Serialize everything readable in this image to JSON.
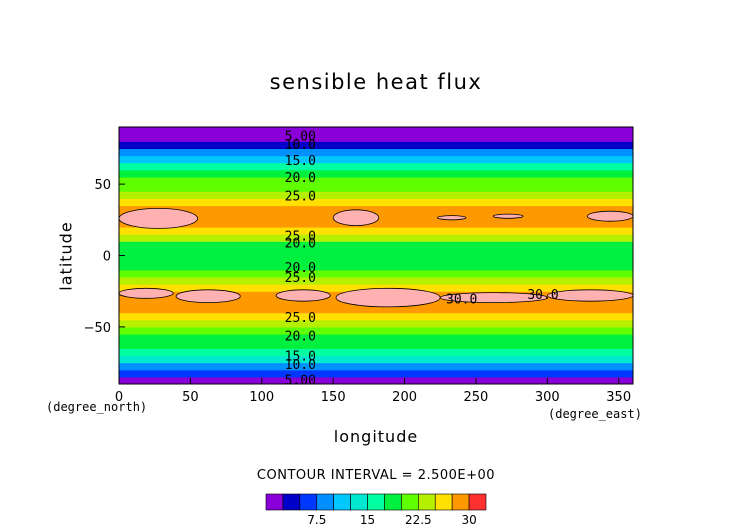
{
  "chart_data": {
    "type": "heatmap",
    "title": "sensible heat flux",
    "xlabel": "longitude",
    "ylabel": "latitude",
    "x_unit": "(degree_east)",
    "y_unit": "(degree_north)",
    "xlim": [
      0,
      360
    ],
    "ylim": [
      -90,
      90
    ],
    "x_ticks": [
      0,
      50,
      100,
      150,
      200,
      250,
      300,
      350
    ],
    "y_ticks": [
      -50,
      0,
      50
    ],
    "contour_interval_text": "CONTOUR INTERVAL = 2.500E+00",
    "colorbar": {
      "levels": [
        0,
        2.5,
        5,
        7.5,
        10,
        12.5,
        15,
        17.5,
        20,
        22.5,
        25,
        27.5,
        30,
        32.5
      ],
      "colors": [
        "#8a00d8",
        "#0000c8",
        "#0038ff",
        "#0090ff",
        "#00c8ff",
        "#00e8d0",
        "#00ffa0",
        "#00f040",
        "#60ff00",
        "#b4f000",
        "#ffe000",
        "#ff9900",
        "#ff3030",
        "#ffb0b0"
      ],
      "tick_labels": [
        "7.5",
        "15",
        "22.5",
        "30"
      ],
      "tick_values": [
        7.5,
        15,
        22.5,
        30
      ]
    },
    "zonal_profile": [
      {
        "lat": -90,
        "value": 1
      },
      {
        "lat": -85,
        "value": 3
      },
      {
        "lat": -80,
        "value": 7
      },
      {
        "lat": -75,
        "value": 12
      },
      {
        "lat": -70,
        "value": 15
      },
      {
        "lat": -65,
        "value": 17
      },
      {
        "lat": -60,
        "value": 18.5
      },
      {
        "lat": -55,
        "value": 20
      },
      {
        "lat": -50,
        "value": 22
      },
      {
        "lat": -45,
        "value": 24
      },
      {
        "lat": -40,
        "value": 26.5
      },
      {
        "lat": -35,
        "value": 28.5
      },
      {
        "lat": -30,
        "value": 29.5
      },
      {
        "lat": -25,
        "value": 28.5
      },
      {
        "lat": -20,
        "value": 26
      },
      {
        "lat": -15,
        "value": 23
      },
      {
        "lat": -10,
        "value": 20
      },
      {
        "lat": -5,
        "value": 18
      },
      {
        "lat": 0,
        "value": 17
      },
      {
        "lat": 5,
        "value": 18
      },
      {
        "lat": 10,
        "value": 21
      },
      {
        "lat": 15,
        "value": 25
      },
      {
        "lat": 20,
        "value": 28.5
      },
      {
        "lat": 25,
        "value": 30
      },
      {
        "lat": 30,
        "value": 29
      },
      {
        "lat": 35,
        "value": 26.5
      },
      {
        "lat": 40,
        "value": 24
      },
      {
        "lat": 45,
        "value": 22.5
      },
      {
        "lat": 50,
        "value": 21
      },
      {
        "lat": 55,
        "value": 19.5
      },
      {
        "lat": 60,
        "value": 17.5
      },
      {
        "lat": 65,
        "value": 14
      },
      {
        "lat": 70,
        "value": 10
      },
      {
        "lat": 75,
        "value": 6
      },
      {
        "lat": 80,
        "value": 3
      },
      {
        "lat": 85,
        "value": 1.5
      },
      {
        "lat": 90,
        "value": 0
      }
    ],
    "high_patches": [
      {
        "lon_min": 0,
        "lon_max": 55,
        "lat_min": 19,
        "lat_max": 33
      },
      {
        "lon_min": 150,
        "lon_max": 182,
        "lat_min": 21,
        "lat_max": 32
      },
      {
        "lon_min": 223,
        "lon_max": 243,
        "lat_min": 25,
        "lat_max": 28
      },
      {
        "lon_min": 262,
        "lon_max": 283,
        "lat_min": 26,
        "lat_max": 29
      },
      {
        "lon_min": 328,
        "lon_max": 360,
        "lat_min": 24,
        "lat_max": 31
      },
      {
        "lon_min": 0,
        "lon_max": 38,
        "lat_min": -30,
        "lat_max": -23
      },
      {
        "lon_min": 40,
        "lon_max": 85,
        "lat_min": -33,
        "lat_max": -24
      },
      {
        "lon_min": 110,
        "lon_max": 148,
        "lat_min": -32,
        "lat_max": -24
      },
      {
        "lon_min": 152,
        "lon_max": 225,
        "lat_min": -36,
        "lat_max": -23
      },
      {
        "lon_min": 225,
        "lon_max": 300,
        "lat_min": -33,
        "lat_max": -26
      },
      {
        "lon_min": 300,
        "lon_max": 360,
        "lat_min": -32,
        "lat_max": -24
      }
    ],
    "contour_labels": [
      {
        "text": "5.00",
        "lon": 127,
        "lat": 84
      },
      {
        "text": "10.0",
        "lon": 127,
        "lat": 78
      },
      {
        "text": "15.0",
        "lon": 127,
        "lat": 67
      },
      {
        "text": "20.0",
        "lon": 127,
        "lat": 55
      },
      {
        "text": "25.0",
        "lon": 127,
        "lat": 42
      },
      {
        "text": "25.0",
        "lon": 127,
        "lat": 14
      },
      {
        "text": "20.0",
        "lon": 127,
        "lat": 9
      },
      {
        "text": "20.0",
        "lon": 127,
        "lat": -8
      },
      {
        "text": "25.0",
        "lon": 127,
        "lat": -15
      },
      {
        "text": "30.0",
        "lon": 240,
        "lat": -30
      },
      {
        "text": "30.0",
        "lon": 297,
        "lat": -27
      },
      {
        "text": "25.0",
        "lon": 127,
        "lat": -43
      },
      {
        "text": "20.0",
        "lon": 127,
        "lat": -56
      },
      {
        "text": "15.0",
        "lon": 127,
        "lat": -70
      },
      {
        "text": "10.0",
        "lon": 127,
        "lat": -76
      },
      {
        "text": "5.00",
        "lon": 127,
        "lat": -87
      }
    ]
  }
}
